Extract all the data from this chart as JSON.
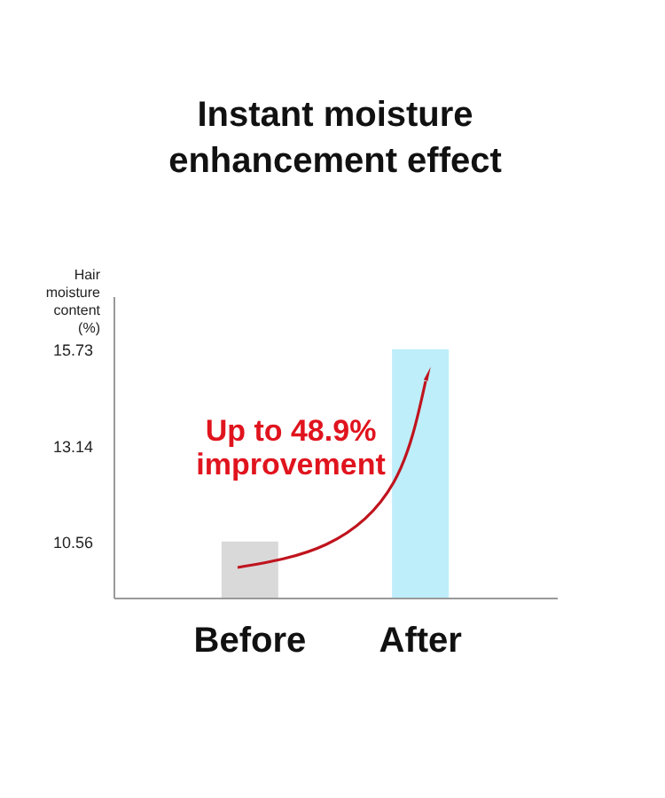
{
  "chart_data": {
    "type": "bar",
    "title": "Instant moisture\nenhancement effect",
    "ylabel": "Hair\nmoisture\ncontent\n(%)",
    "categories": [
      "Before",
      "After"
    ],
    "values": [
      10.56,
      15.73
    ],
    "colors": [
      "#d9d9d9",
      "#bdeefa"
    ],
    "ylim": [
      9.05,
      17.16
    ],
    "yticks": [
      10.56,
      13.14,
      15.73
    ],
    "annotations": [
      "Up to 48.9%\nimprovement"
    ]
  }
}
